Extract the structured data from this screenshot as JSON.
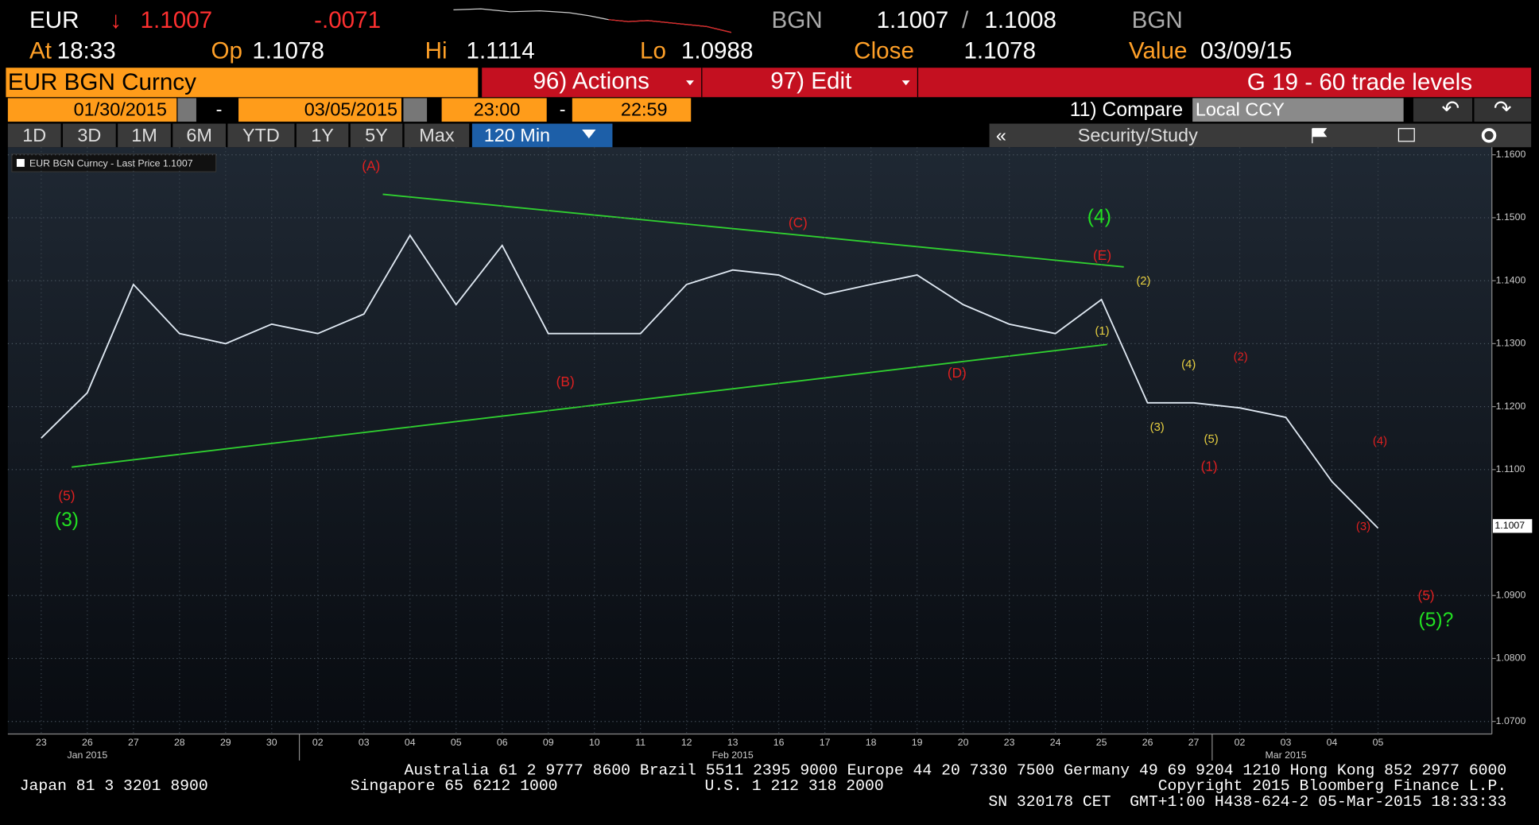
{
  "header": {
    "symbol": "EUR",
    "arrow": "↓",
    "last": "1.1007",
    "change": "-.0071",
    "quote_ccy": "BGN",
    "bid": "1.1007",
    "slash": "/",
    "ask": "1.1008",
    "quote_ccy2": "BGN",
    "at_label": "At",
    "at": "18:33",
    "op_label": "Op",
    "op": "1.1078",
    "hi_label": "Hi",
    "hi": "1.1114",
    "lo_label": "Lo",
    "lo": "1.0988",
    "close_label": "Close",
    "close": "1.1078",
    "value_label": "Value",
    "value": "03/09/15"
  },
  "toolbar": {
    "security": "EUR BGN Curncy",
    "actions": "96) Actions",
    "edit": "97) Edit",
    "title": "G 19 - 60 trade levels"
  },
  "range": {
    "start": "01/30/2015",
    "dash1": "-",
    "end": "03/05/2015",
    "start_time": "23:00",
    "dash2": "-",
    "end_time": "22:59",
    "compare": "11) Compare",
    "currency": "Local CCY"
  },
  "periods": [
    "1D",
    "3D",
    "1M",
    "6M",
    "YTD",
    "1Y",
    "5Y",
    "Max"
  ],
  "interval": "120 Min",
  "collapse": "«",
  "study": "Security/Study",
  "chart_data": {
    "type": "line",
    "categories": [
      "23",
      "26",
      "27",
      "28",
      "29",
      "30",
      "02",
      "03",
      "04",
      "05",
      "06",
      "09",
      "10",
      "11",
      "12",
      "13",
      "16",
      "17",
      "18",
      "19",
      "20",
      "23",
      "24",
      "25",
      "26",
      "27",
      "02",
      "03",
      "04",
      "05"
    ],
    "months": [
      "Jan 2015",
      "Feb 2015",
      "Mar 2015"
    ],
    "series": [
      {
        "name": "EUR BGN Curncy - Last Price 1.1007",
        "color": "#dfe8f2",
        "values": [
          1.115,
          1.1222,
          1.1394,
          1.1316,
          1.13,
          1.1331,
          1.1316,
          1.1347,
          1.1472,
          1.1362,
          1.1456,
          1.1316,
          1.1316,
          1.1316,
          1.1394,
          1.1417,
          1.1409,
          1.1378,
          1.1394,
          1.1409,
          1.1362,
          1.1331,
          1.1316,
          1.137,
          1.1206,
          1.1206,
          1.1198,
          1.1183,
          1.1081,
          1.1007
        ]
      }
    ],
    "last_label": "1.1007",
    "ylim": [
      1.068,
      1.1612
    ],
    "yticks": [
      {
        "value": 1.16,
        "label": "1.1600"
      },
      {
        "value": 1.15,
        "label": "1.1500"
      },
      {
        "value": 1.14,
        "label": "1.1400"
      },
      {
        "value": 1.13,
        "label": "1.1300"
      },
      {
        "value": 1.12,
        "label": "1.1200"
      },
      {
        "value": 1.11,
        "label": "1.1100"
      },
      {
        "value": 1.09,
        "label": "1.0900"
      },
      {
        "value": 1.08,
        "label": "1.0800"
      },
      {
        "value": 1.07,
        "label": "1.0700"
      }
    ],
    "grid": true,
    "annotations": [
      {
        "text": "(A)",
        "color": "#e02020"
      },
      {
        "text": "(B)",
        "color": "#e02020"
      },
      {
        "text": "(C)",
        "color": "#e02020"
      },
      {
        "text": "(D)",
        "color": "#e02020"
      },
      {
        "text": "(E)",
        "color": "#e02020"
      },
      {
        "text": "(5)",
        "color": "#e02020"
      },
      {
        "text": "(3)",
        "color": "#22e022"
      },
      {
        "text": "(4)",
        "color": "#22e022"
      },
      {
        "text": "(1)",
        "color": "#e8d040"
      },
      {
        "text": "(2)",
        "color": "#e8d040"
      },
      {
        "text": "(3)",
        "color": "#e8d040"
      },
      {
        "text": "(4)",
        "color": "#e8d040"
      },
      {
        "text": "(5)",
        "color": "#e8d040"
      },
      {
        "text": "(1)",
        "color": "#e02020"
      },
      {
        "text": "(2)",
        "color": "#e02020"
      },
      {
        "text": "(3)",
        "color": "#e02020"
      },
      {
        "text": "(4)",
        "color": "#e02020"
      },
      {
        "text": "(5)",
        "color": "#e02020"
      },
      {
        "text": "(5)?",
        "color": "#22e022"
      }
    ]
  },
  "footer": {
    "line1": "Australia 61 2 9777 8600 Brazil 5511 2395 9000 Europe 44 20 7330 7500 Germany 49 69 9204 1210 Hong Kong 852 2977 6000",
    "line2": [
      "Japan 81 3 3201 8900",
      "Singapore 65 6212 1000",
      "U.S. 1 212 318 2000",
      "Copyright 2015 Bloomberg Finance L.P."
    ],
    "line3": "SN 320178 CET  GMT+1:00 H438-624-2 05-Mar-2015 18:33:33"
  }
}
